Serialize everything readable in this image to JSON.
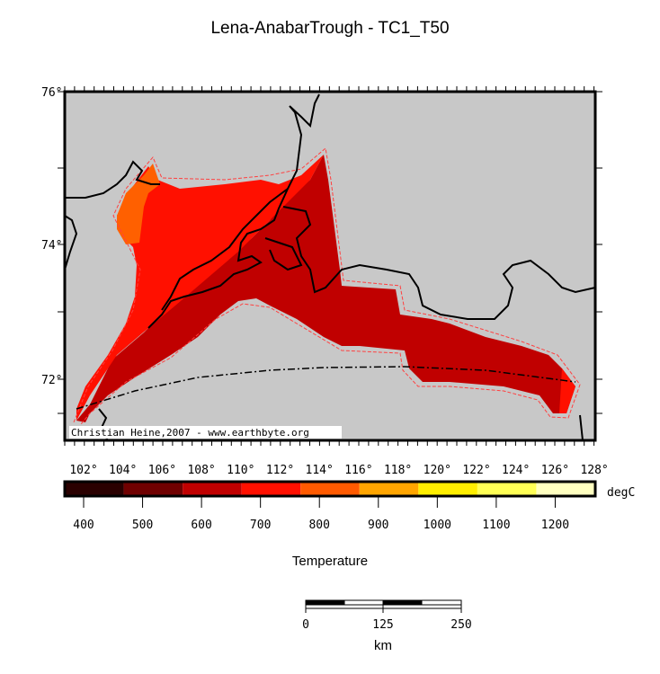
{
  "title": "Lena-AnabarTrough - TC1_T50",
  "credit": "Christian Heine,2007 - www.earthbyte.org",
  "lat_labels": [
    "76°",
    "74°",
    "72°"
  ],
  "lon_labels": [
    "102°",
    "104°",
    "106°",
    "108°",
    "110°",
    "112°",
    "114°",
    "116°",
    "118°",
    "120°",
    "122°",
    "124°",
    "126°",
    "128°"
  ],
  "colorbar": {
    "unit": "degC",
    "label": "Temperature",
    "ticks": [
      "400",
      "500",
      "600",
      "700",
      "800",
      "900",
      "1000",
      "1100",
      "1200"
    ],
    "colors": [
      "#2a0000",
      "#700000",
      "#c00000",
      "#ff1000",
      "#ff5a00",
      "#ffa500",
      "#ffee00",
      "#ffff55",
      "#ffffc0"
    ]
  },
  "scale": {
    "labels": [
      "0",
      "125",
      "250"
    ],
    "unit": "km"
  },
  "colors": {
    "background": "#c8c8c8",
    "t600": "#c00000",
    "t700": "#ff1000",
    "t800": "#ff6000"
  }
}
